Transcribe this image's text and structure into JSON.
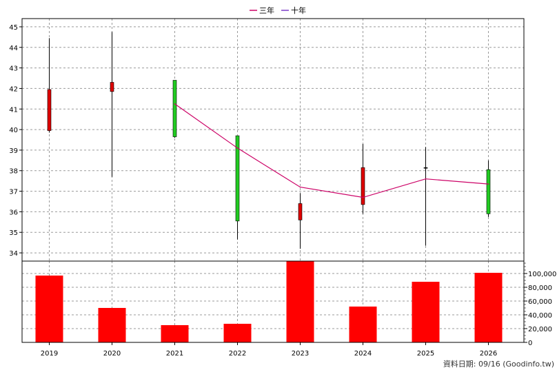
{
  "legend": {
    "three_year": "三年",
    "ten_year": "十年",
    "three_year_color": "#cc0066",
    "ten_year_color": "#7a3cc9"
  },
  "footer": {
    "text": "資料日期: 09/16  (Goodinfo.tw)"
  },
  "chart_data": [
    {
      "type": "candlestick",
      "categories": [
        "2019",
        "2020",
        "2021",
        "2022",
        "2023",
        "2024",
        "2025",
        "2026"
      ],
      "ylim": [
        33.6,
        45.4
      ],
      "y_ticks": [
        34,
        35,
        36,
        37,
        38,
        39,
        40,
        41,
        42,
        43,
        44,
        45
      ],
      "grid": true,
      "candles": [
        {
          "x": "2019",
          "open": 39.95,
          "close": 41.95,
          "high": 44.45,
          "low": 39.85,
          "color": "#dd0000"
        },
        {
          "x": "2020",
          "open": 41.85,
          "close": 42.3,
          "high": 44.75,
          "low": 37.7,
          "color": "#dd0000"
        },
        {
          "x": "2021",
          "open": 42.4,
          "close": 39.65,
          "high": 42.4,
          "low": 39.6,
          "color": "#22cc22"
        },
        {
          "x": "2022",
          "open": 39.7,
          "close": 35.55,
          "high": 39.7,
          "low": 34.65,
          "color": "#22cc22"
        },
        {
          "x": "2023",
          "open": 35.6,
          "close": 36.4,
          "high": 36.9,
          "low": 34.2,
          "color": "#dd0000"
        },
        {
          "x": "2024",
          "open": 36.35,
          "close": 38.15,
          "high": 39.3,
          "low": 35.9,
          "color": "#dd0000"
        },
        {
          "x": "2025",
          "open": 38.15,
          "close": 38.15,
          "high": 39.15,
          "low": 34.35,
          "color": "#000000"
        },
        {
          "x": "2026",
          "open": 38.05,
          "close": 35.9,
          "high": 38.5,
          "low": 35.75,
          "color": "#22cc22"
        }
      ],
      "series": [
        {
          "name": "三年",
          "color": "#cc0066",
          "x": [
            "2021",
            "2022",
            "2023",
            "2024",
            "2025",
            "2026"
          ],
          "values": [
            41.25,
            39.1,
            37.2,
            36.7,
            37.6,
            37.35
          ]
        }
      ]
    },
    {
      "type": "bar",
      "categories": [
        "2019",
        "2020",
        "2021",
        "2022",
        "2023",
        "2024",
        "2025",
        "2026"
      ],
      "values": [
        97000,
        50000,
        25000,
        27000,
        118000,
        52000,
        88000,
        101000
      ],
      "ylim": [
        0,
        118000
      ],
      "y_ticks": [
        0,
        20000,
        40000,
        60000,
        80000,
        100000
      ],
      "y_tick_labels": [
        "0",
        "20,000",
        "40,000",
        "60,000",
        "80,000",
        "100,000"
      ],
      "color": "#ff0000",
      "grid": true
    }
  ]
}
